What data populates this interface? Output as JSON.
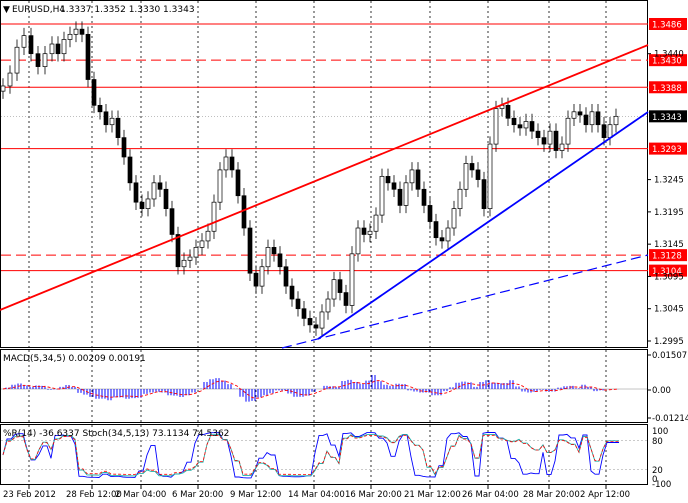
{
  "header": {
    "symbol": "EURUSD,H4",
    "ohlc": "1.3337 1.3352 1.3330 1.3343",
    "arrow_icon": "triangle-down-icon"
  },
  "main_panel": {
    "price_ticks": [
      "1.3430",
      "1.3388",
      "1.3343",
      "1.3293",
      "1.3245",
      "1.3195",
      "1.3145",
      "1.3095",
      "1.3045",
      "1.2995"
    ],
    "plain_ticks": [
      "1.3440",
      "1.3390",
      "1.3245",
      "1.3195",
      "1.3145",
      "1.3095",
      "1.3045",
      "1.2995"
    ],
    "levels": [
      {
        "label": "1.3486",
        "style": "solid",
        "bg": "#ff0000"
      },
      {
        "label": "1.3430",
        "style": "dashed",
        "bg": "#ff0000"
      },
      {
        "label": "1.3388",
        "style": "solid",
        "bg": "#ff0000"
      },
      {
        "label": "1.3293",
        "style": "solid",
        "bg": "#ff0000"
      },
      {
        "label": "1.3128",
        "style": "dashed",
        "bg": "#ff0000"
      },
      {
        "label": "1.3104",
        "style": "solid",
        "bg": "#ff0000"
      }
    ],
    "current_price": "1.3343",
    "colors": {
      "level": "#ff0000",
      "trend_up": "#0000ff",
      "channel": "#ff0000",
      "candle": "#000000"
    }
  },
  "macd_panel": {
    "label": "MACD(5,34,5) 0.00209 0.00191",
    "ticks": [
      "0.01507",
      "0.00",
      "-0.01214"
    ],
    "colors": {
      "hist": "#0000ff",
      "signal": "#ff0000"
    }
  },
  "stoch_panel": {
    "label": "%R(14) -36.6337 Stoch(34,5,13) 73.1134 74.5362",
    "ticks": [
      "100",
      "80",
      "20",
      "0",
      "-100"
    ],
    "colors": {
      "wpr": "#0000ff",
      "main": "#20b2aa",
      "signal": "#ff0000"
    }
  },
  "time_axis": [
    "23 Feb 2012",
    "28 Feb 12:00",
    "2 Mar 04:00",
    "6 Mar 20:00",
    "9 Mar 12:00",
    "14 Mar 04:00",
    "16 Mar 20:00",
    "21 Mar 12:00",
    "26 Mar 04:00",
    "28 Mar 20:00",
    "2 Apr 12:00"
  ]
}
